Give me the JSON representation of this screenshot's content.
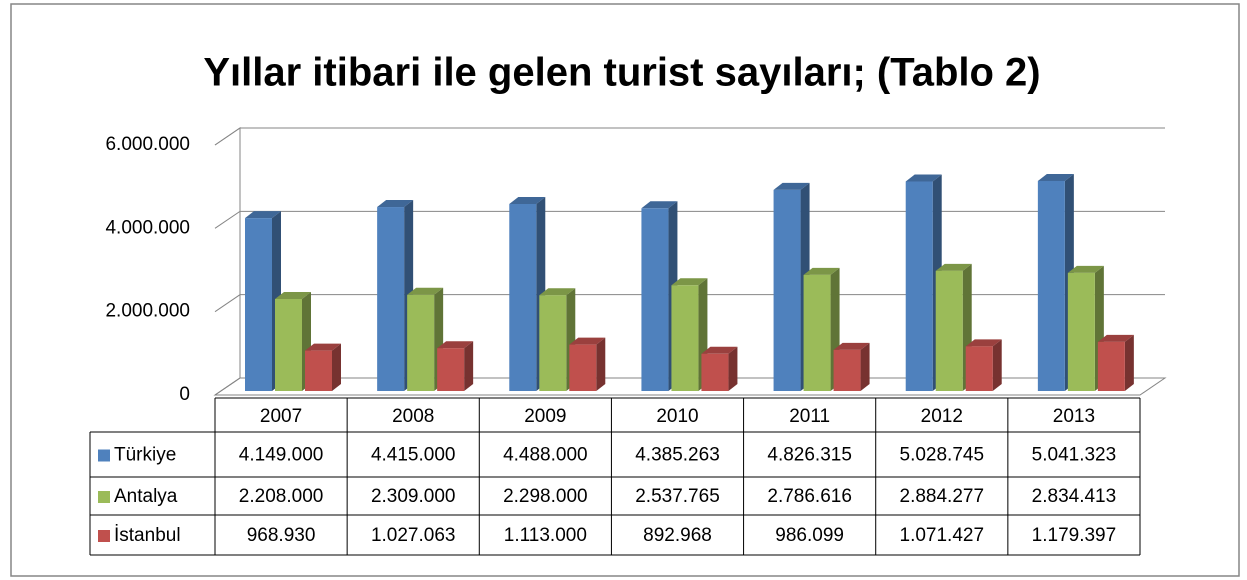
{
  "chart_data": {
    "type": "bar",
    "title": "Yıllar itibari ile gelen turist sayıları; (Tablo 2)",
    "categories": [
      "2007",
      "2008",
      "2009",
      "2010",
      "2011",
      "2012",
      "2013"
    ],
    "series": [
      {
        "name": "Türkiye",
        "color": "#4f81bd",
        "values": [
          4149000,
          4415000,
          4488000,
          4385263,
          4826315,
          5028745,
          5041323
        ],
        "value_labels": [
          "4.149.000",
          "4.415.000",
          "4.488.000",
          "4.385.263",
          "4.826.315",
          "5.028.745",
          "5.041.323"
        ]
      },
      {
        "name": "Antalya",
        "color": "#9bbb59",
        "values": [
          2208000,
          2309000,
          2298000,
          2537765,
          2786616,
          2884277,
          2834413
        ],
        "value_labels": [
          "2.208.000",
          "2.309.000",
          "2.298.000",
          "2.537.765",
          "2.786.616",
          "2.884.277",
          "2.834.413"
        ]
      },
      {
        "name": "İstanbul",
        "color": "#c0504d",
        "values": [
          968930,
          1027063,
          1113000,
          892968,
          986099,
          1071427,
          1179397
        ],
        "value_labels": [
          "968.930",
          "1.027.063",
          "1.113.000",
          "892.968",
          "986.099",
          "1.071.427",
          "1.179.397"
        ]
      }
    ],
    "ylim": [
      0,
      6000000
    ],
    "yticks": [
      0,
      {
        "value": 2000000,
        "label": "2.000.000"
      },
      {
        "value": 4000000,
        "label": "4.000.000"
      },
      {
        "value": 6000000,
        "label": "6.000.000"
      }
    ],
    "grid": true
  }
}
